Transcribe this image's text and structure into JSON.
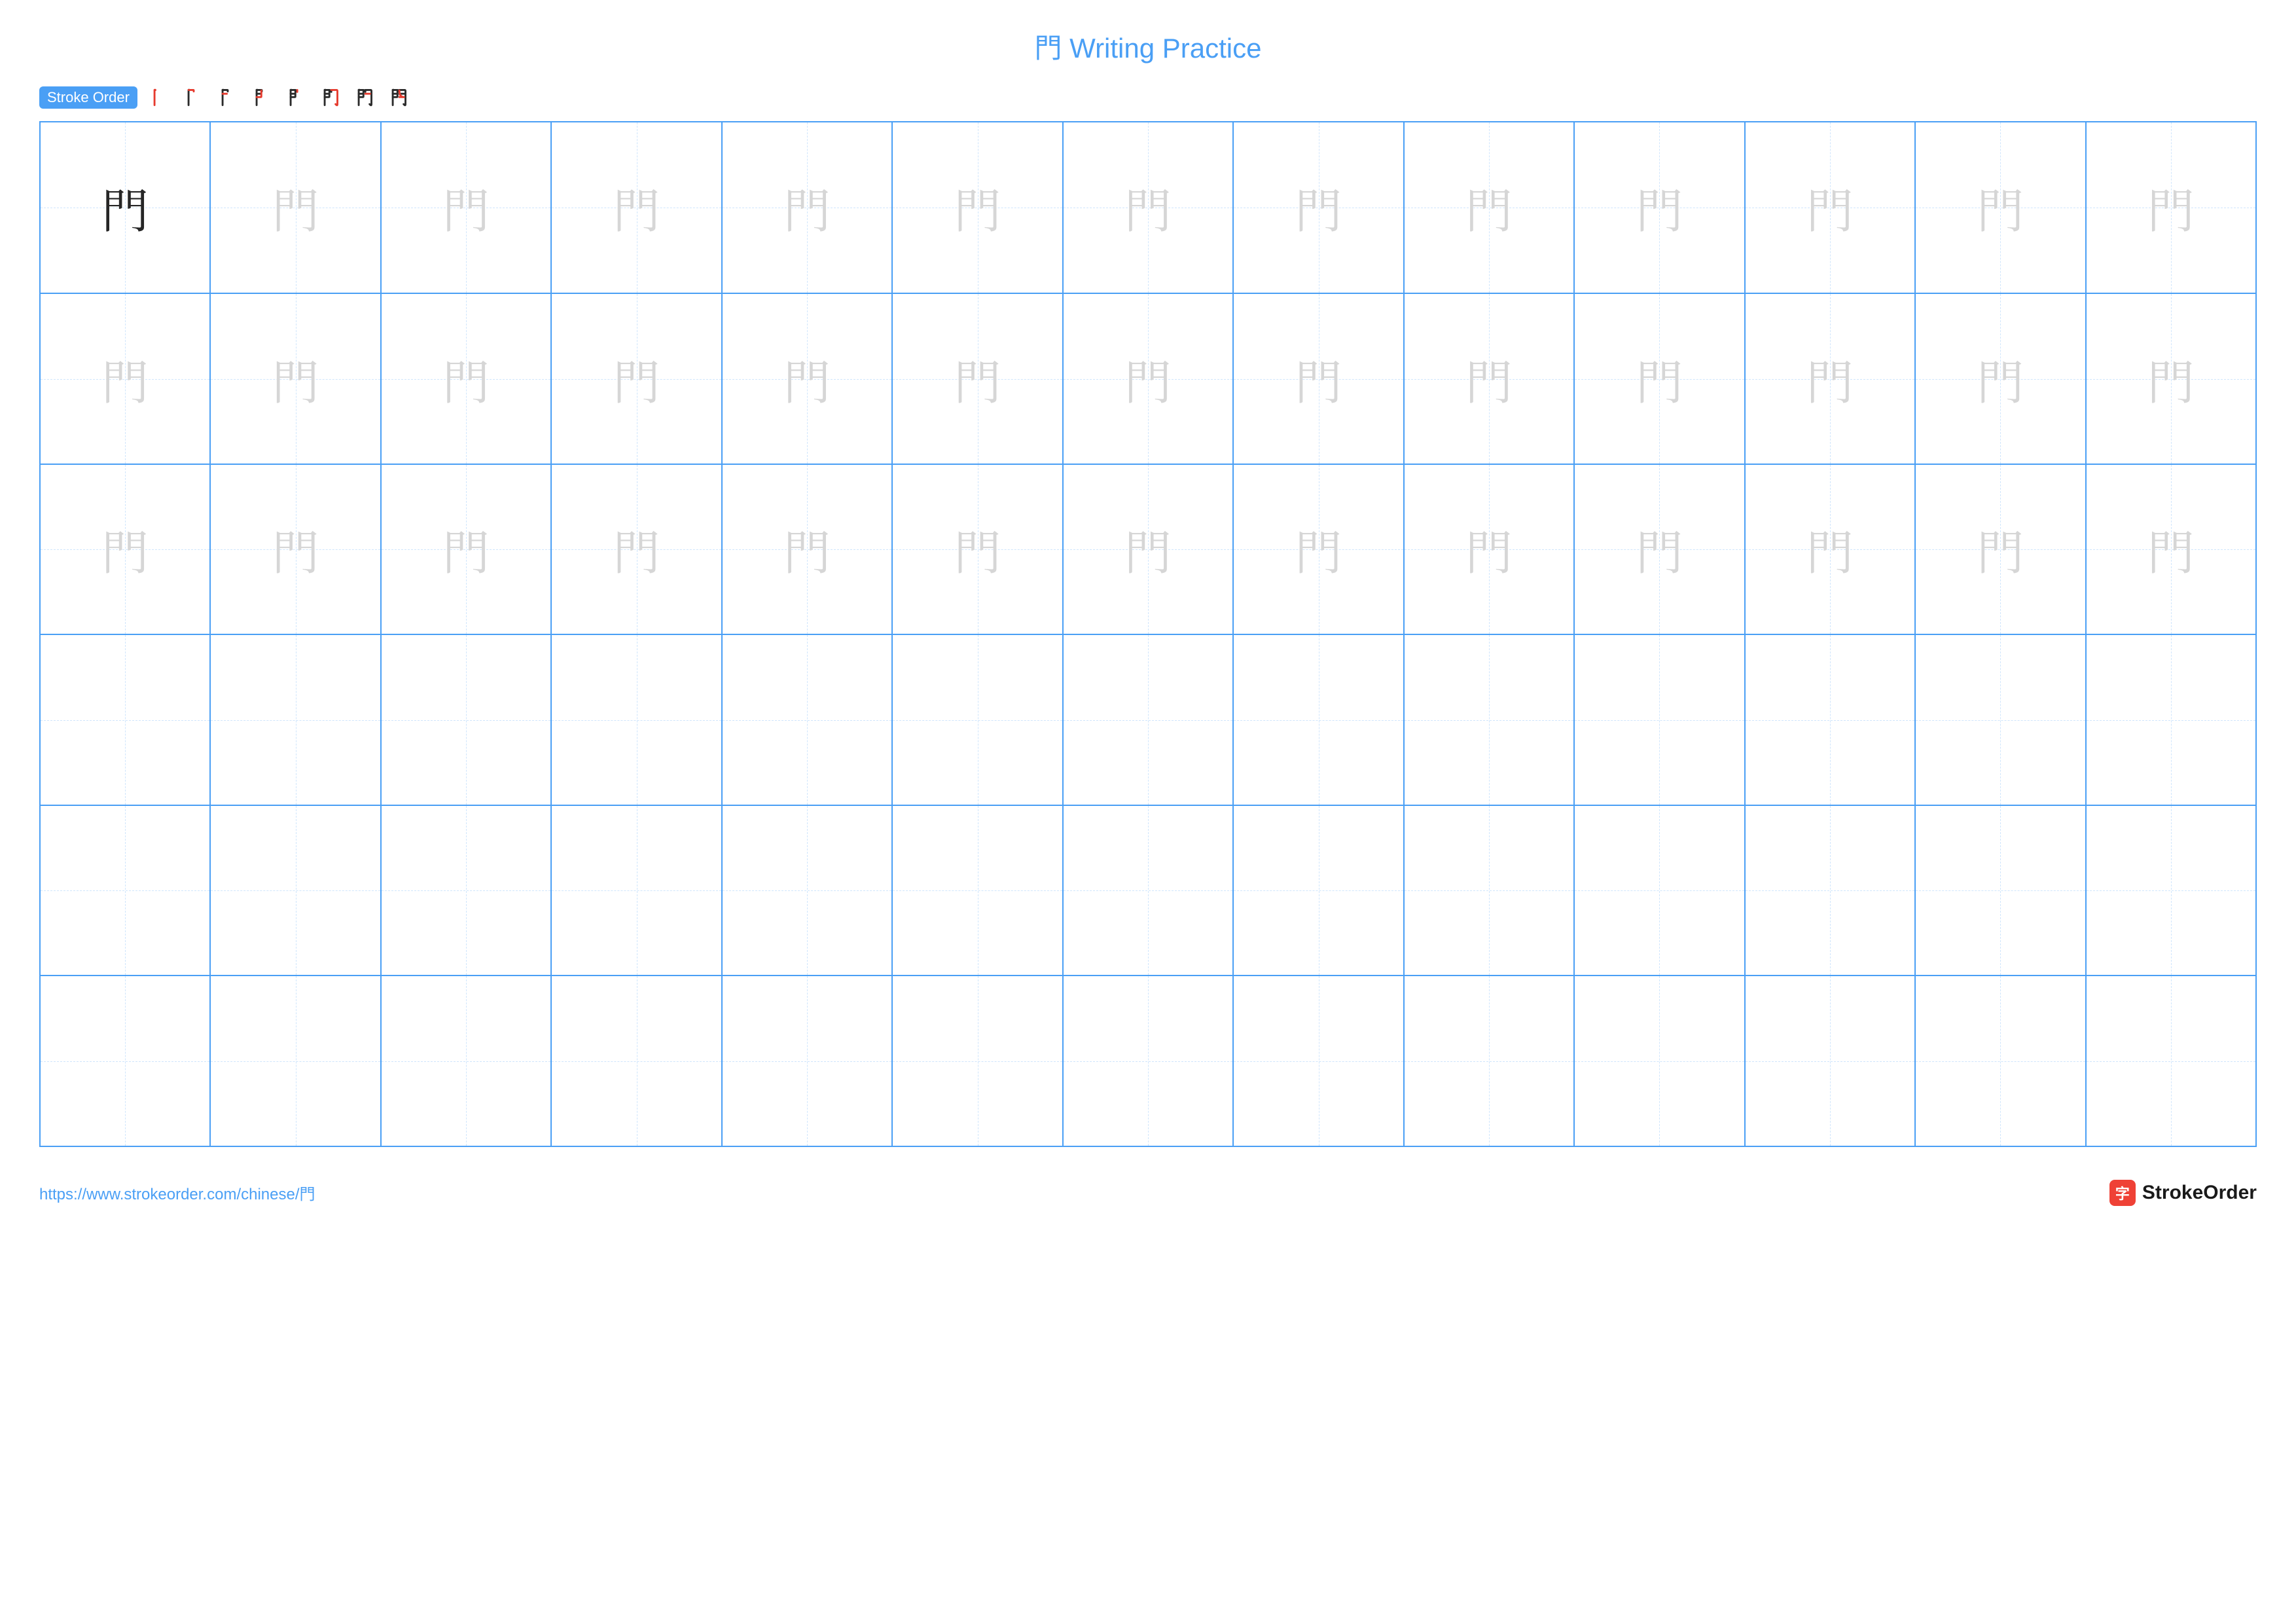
{
  "title": {
    "char": "門",
    "rest": " Writing Practice"
  },
  "colors": {
    "accent": "#4a9ff5",
    "grid_border": "#4a9ff5",
    "dash": "#a9d1fb",
    "stroke_black": "#2b2b2b",
    "stroke_red": "#e63b2e",
    "ghost": "#d6d6d6",
    "solid_char": "#262626",
    "logo_bg": "#ef4136",
    "logo_text": "#1a1a1a"
  },
  "stroke_order": {
    "label": "Stroke Order",
    "total_strokes": 8
  },
  "men_paths": [
    "M28 18 L28 82 M28 18 Q30 16 32 18",
    "M28 18 L48 18 Q50 18 50 20 L50 24",
    "M28 34 L46 34",
    "M28 48 L46 48 Q48 48 48 46 L48 20",
    "M56 18 L56 26",
    "M56 18 L78 18 Q82 18 82 22 L82 80 Q82 84 78 82 L74 78",
    "M56 34 L76 34",
    "M56 48 L76 48 Q56 48 56 20"
  ],
  "grid": {
    "rows": 6,
    "cols": 13,
    "cells": {
      "solid": [
        [
          0,
          0
        ]
      ],
      "ghost_rows": [
        0,
        1,
        2
      ],
      "empty_rows": [
        3,
        4,
        5
      ]
    },
    "character": "門"
  },
  "footer": {
    "url": "https://www.strokeorder.com/chinese/門",
    "logo_char": "字",
    "logo_text": "StrokeOrder"
  }
}
